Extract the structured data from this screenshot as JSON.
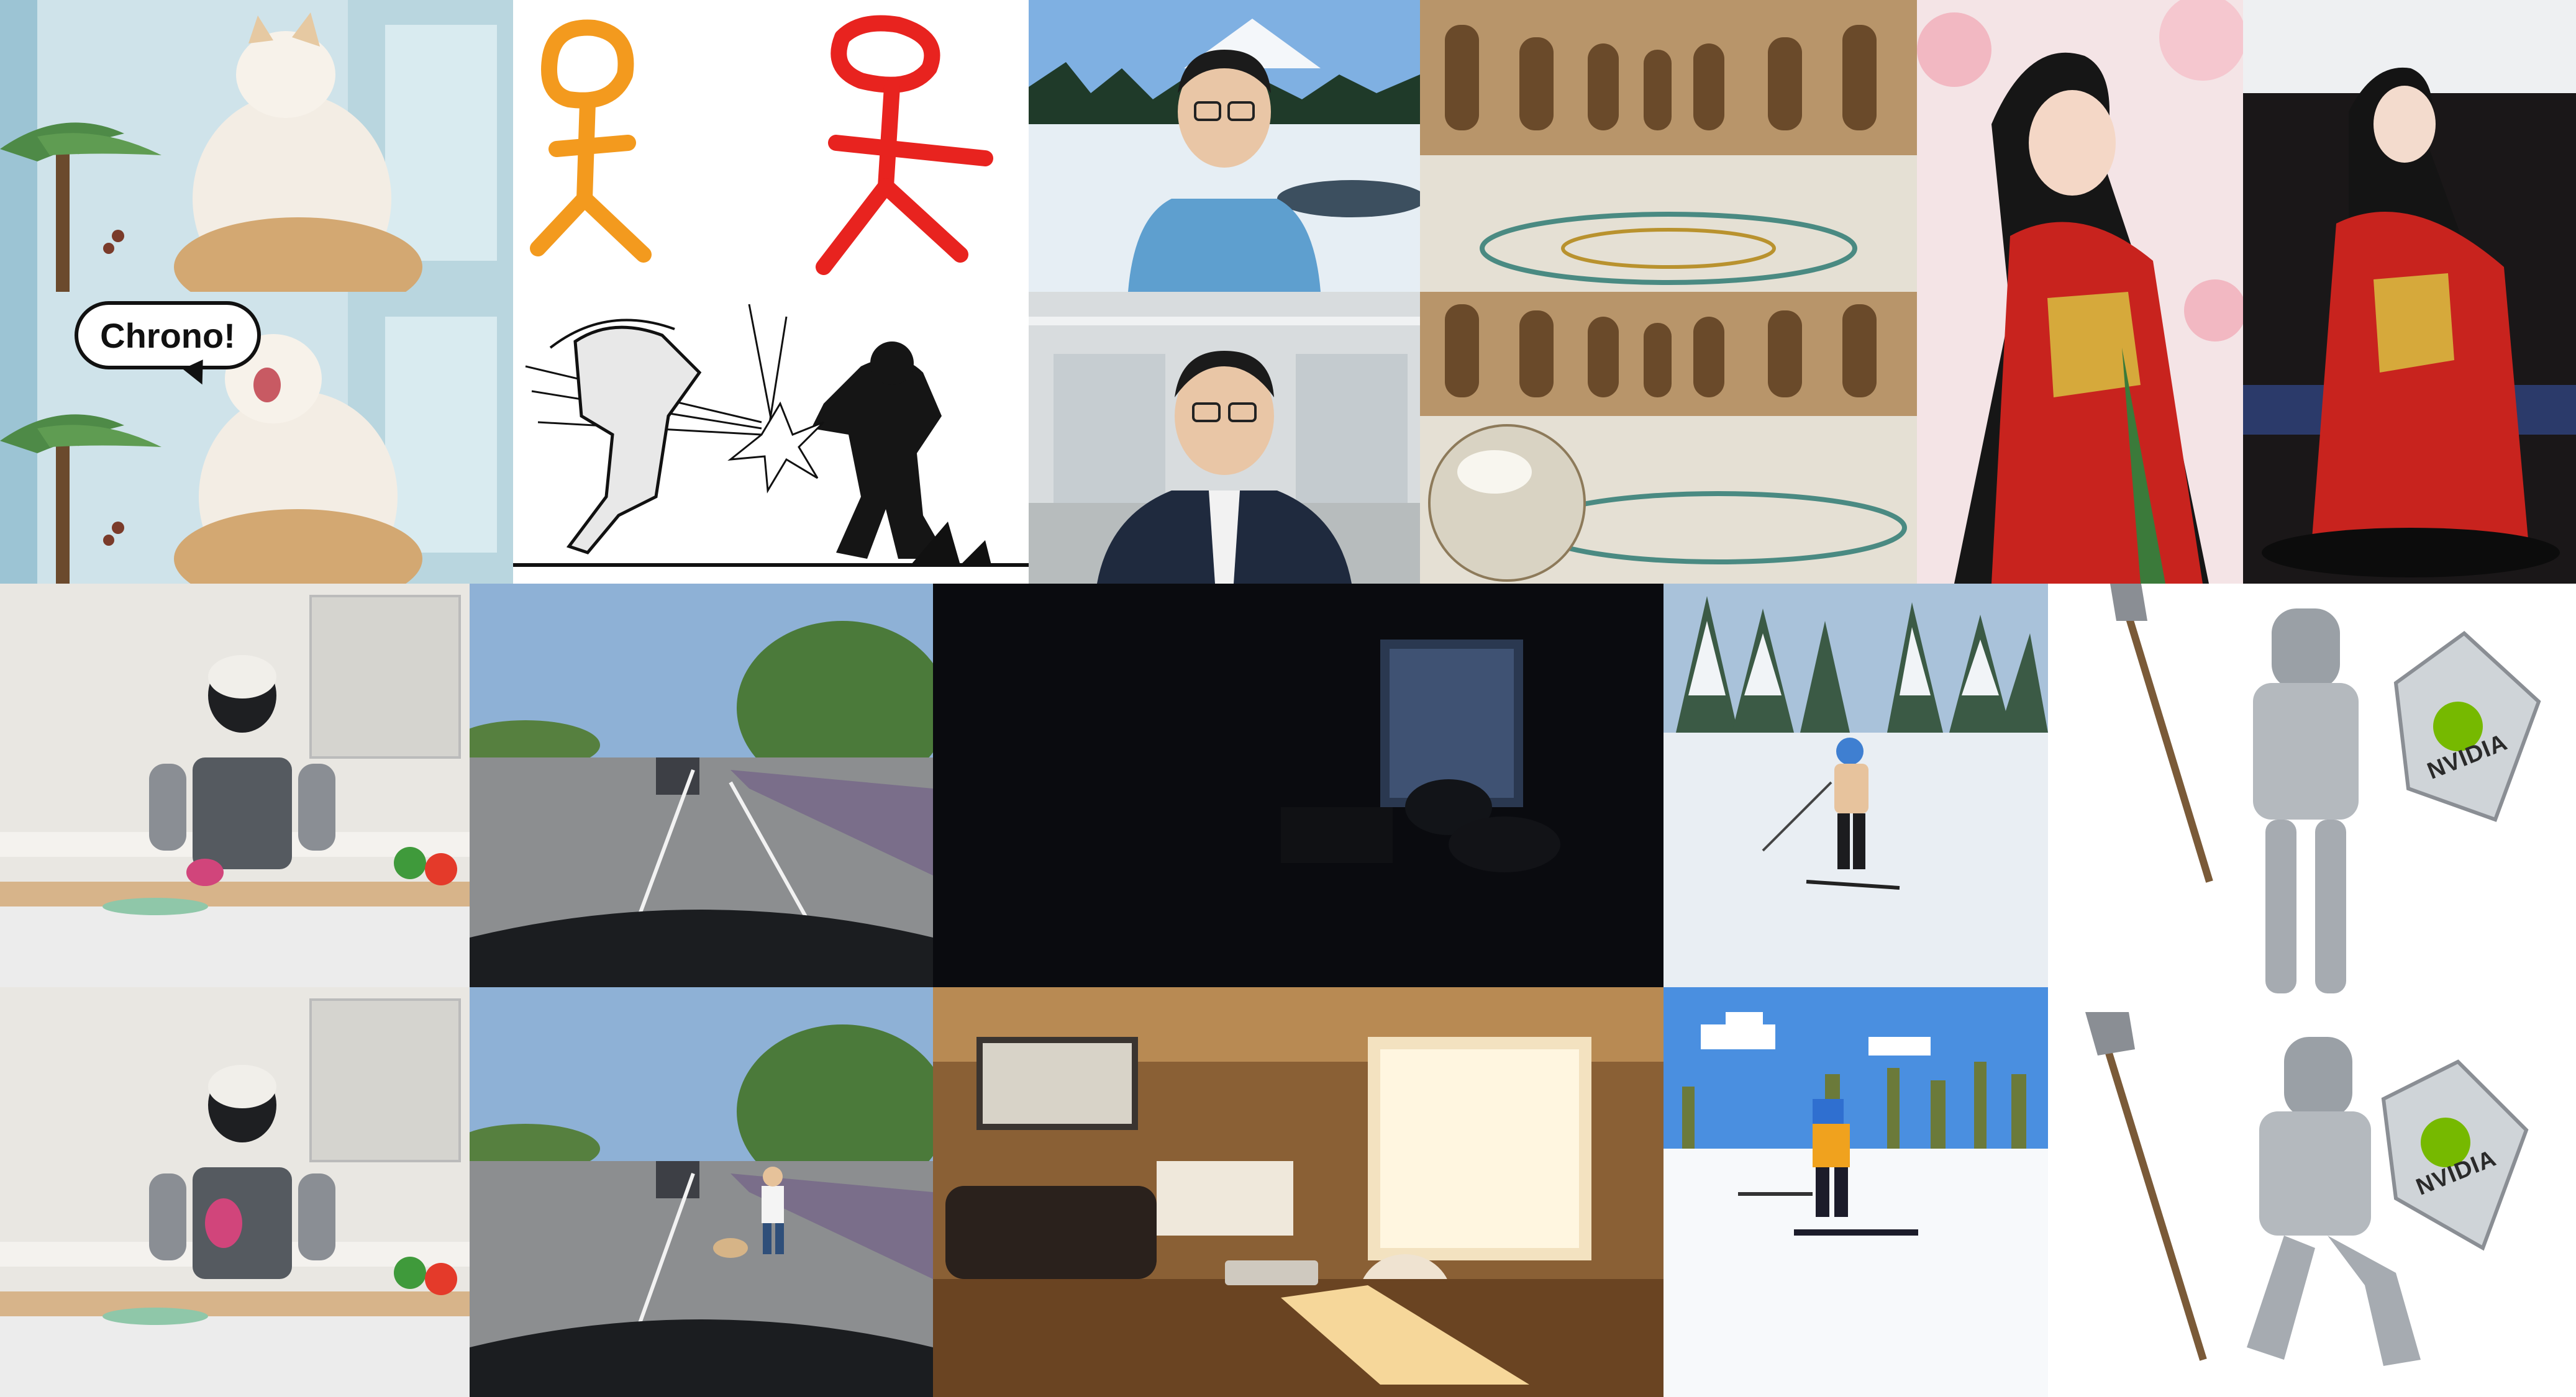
{
  "collage": {
    "cat": {
      "speech_bubble": "Chrono!"
    },
    "knight": {
      "shield_logo_top": "NVIDIA",
      "shield_logo_bottom": "NVIDIA"
    }
  },
  "colors": {
    "cat_bg": "#cfe3ea",
    "stick_orange": "#f39a1e",
    "stick_red": "#e8231f",
    "sky_blue": "#6fa6d8",
    "kimono_red": "#c8231e",
    "night_room": "#0a0b0f",
    "warm_room": "#8a6035",
    "snow": "#e9eef3",
    "nvidia_green": "#76b900"
  }
}
